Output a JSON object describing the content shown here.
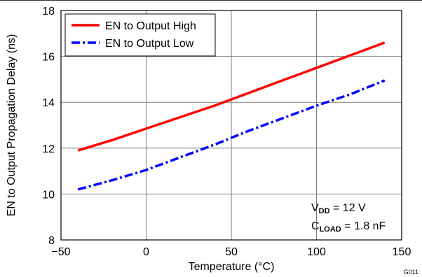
{
  "chart_data": {
    "type": "line",
    "xlabel": "Temperature (°C)",
    "ylabel": "EN to Output Propagation Delay (ns)",
    "xlim": [
      -50,
      150
    ],
    "ylim": [
      8,
      18
    ],
    "x_ticks": [
      -50,
      0,
      50,
      100,
      150
    ],
    "y_ticks": [
      8,
      10,
      12,
      14,
      16,
      18
    ],
    "x_tick_labels": [
      "−50",
      "0",
      "50",
      "100",
      "150"
    ],
    "y_tick_labels": [
      "8",
      "10",
      "12",
      "14",
      "16",
      "18"
    ],
    "grid": true,
    "legend_position": "top-left",
    "series": [
      {
        "name": "EN to Output High",
        "color": "#ff0000",
        "style": "solid",
        "x": [
          -40,
          -20,
          0,
          20,
          40,
          60,
          80,
          100,
          120,
          140
        ],
        "y": [
          11.9,
          12.35,
          12.85,
          13.35,
          13.85,
          14.4,
          14.95,
          15.5,
          16.05,
          16.6
        ]
      },
      {
        "name": "EN to Output Low",
        "color": "#0000ff",
        "style": "dash-dot",
        "x": [
          -40,
          -20,
          0,
          20,
          40,
          60,
          80,
          100,
          120,
          140
        ],
        "y": [
          10.2,
          10.6,
          11.05,
          11.6,
          12.15,
          12.75,
          13.3,
          13.85,
          14.35,
          14.95
        ]
      }
    ],
    "annotation": {
      "line1": {
        "main": "V",
        "sub": "DD",
        "rest": " = 12 V"
      },
      "line2": {
        "main": "C",
        "sub": "LOAD",
        "rest": " = 1.8 nF"
      }
    },
    "figure_id": "G011"
  }
}
